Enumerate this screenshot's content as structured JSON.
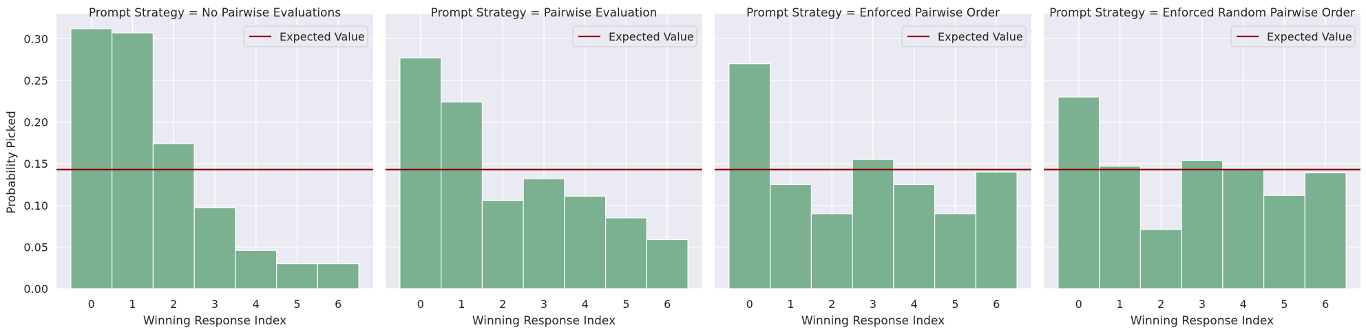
{
  "figure": {
    "ylabel": "Probability Picked",
    "colors": {
      "bar_fill": "#7bb091",
      "bar_edge": "#ffffff",
      "expected_line": "#8b0000",
      "panel_bg": "#eaeaf2",
      "grid": "#ffffff",
      "text": "#262626"
    }
  },
  "chart_data": [
    {
      "type": "bar",
      "title": "Prompt Strategy = No Pairwise Evaluations",
      "xlabel": "Winning Response Index",
      "ylabel": "Probability Picked",
      "categories": [
        "0",
        "1",
        "2",
        "3",
        "4",
        "5",
        "6"
      ],
      "values": [
        0.312,
        0.307,
        0.174,
        0.097,
        0.046,
        0.03,
        0.03
      ],
      "expected_value": 0.143,
      "legend": "Expected Value",
      "ylim": [
        0,
        0.33
      ],
      "yticks": [
        "0.00",
        "0.05",
        "0.10",
        "0.15",
        "0.20",
        "0.25",
        "0.30"
      ]
    },
    {
      "type": "bar",
      "title": "Prompt Strategy = Pairwise Evaluation",
      "xlabel": "Winning Response Index",
      "ylabel": "",
      "categories": [
        "0",
        "1",
        "2",
        "3",
        "4",
        "5",
        "6"
      ],
      "values": [
        0.277,
        0.224,
        0.106,
        0.132,
        0.111,
        0.085,
        0.059
      ],
      "expected_value": 0.143,
      "legend": "Expected Value",
      "ylim": [
        0,
        0.33
      ]
    },
    {
      "type": "bar",
      "title": "Prompt Strategy = Enforced Pairwise Order",
      "xlabel": "Winning Response Index",
      "ylabel": "",
      "categories": [
        "0",
        "1",
        "2",
        "3",
        "4",
        "5",
        "6"
      ],
      "values": [
        0.27,
        0.125,
        0.09,
        0.155,
        0.125,
        0.09,
        0.14
      ],
      "expected_value": 0.143,
      "legend": "Expected Value",
      "ylim": [
        0,
        0.33
      ]
    },
    {
      "type": "bar",
      "title": "Prompt Strategy = Enforced Random Pairwise Order",
      "xlabel": "Winning Response Index",
      "ylabel": "",
      "categories": [
        "0",
        "1",
        "2",
        "3",
        "4",
        "5",
        "6"
      ],
      "values": [
        0.23,
        0.147,
        0.071,
        0.154,
        0.143,
        0.112,
        0.139
      ],
      "expected_value": 0.143,
      "legend": "Expected Value",
      "ylim": [
        0,
        0.33
      ]
    }
  ]
}
